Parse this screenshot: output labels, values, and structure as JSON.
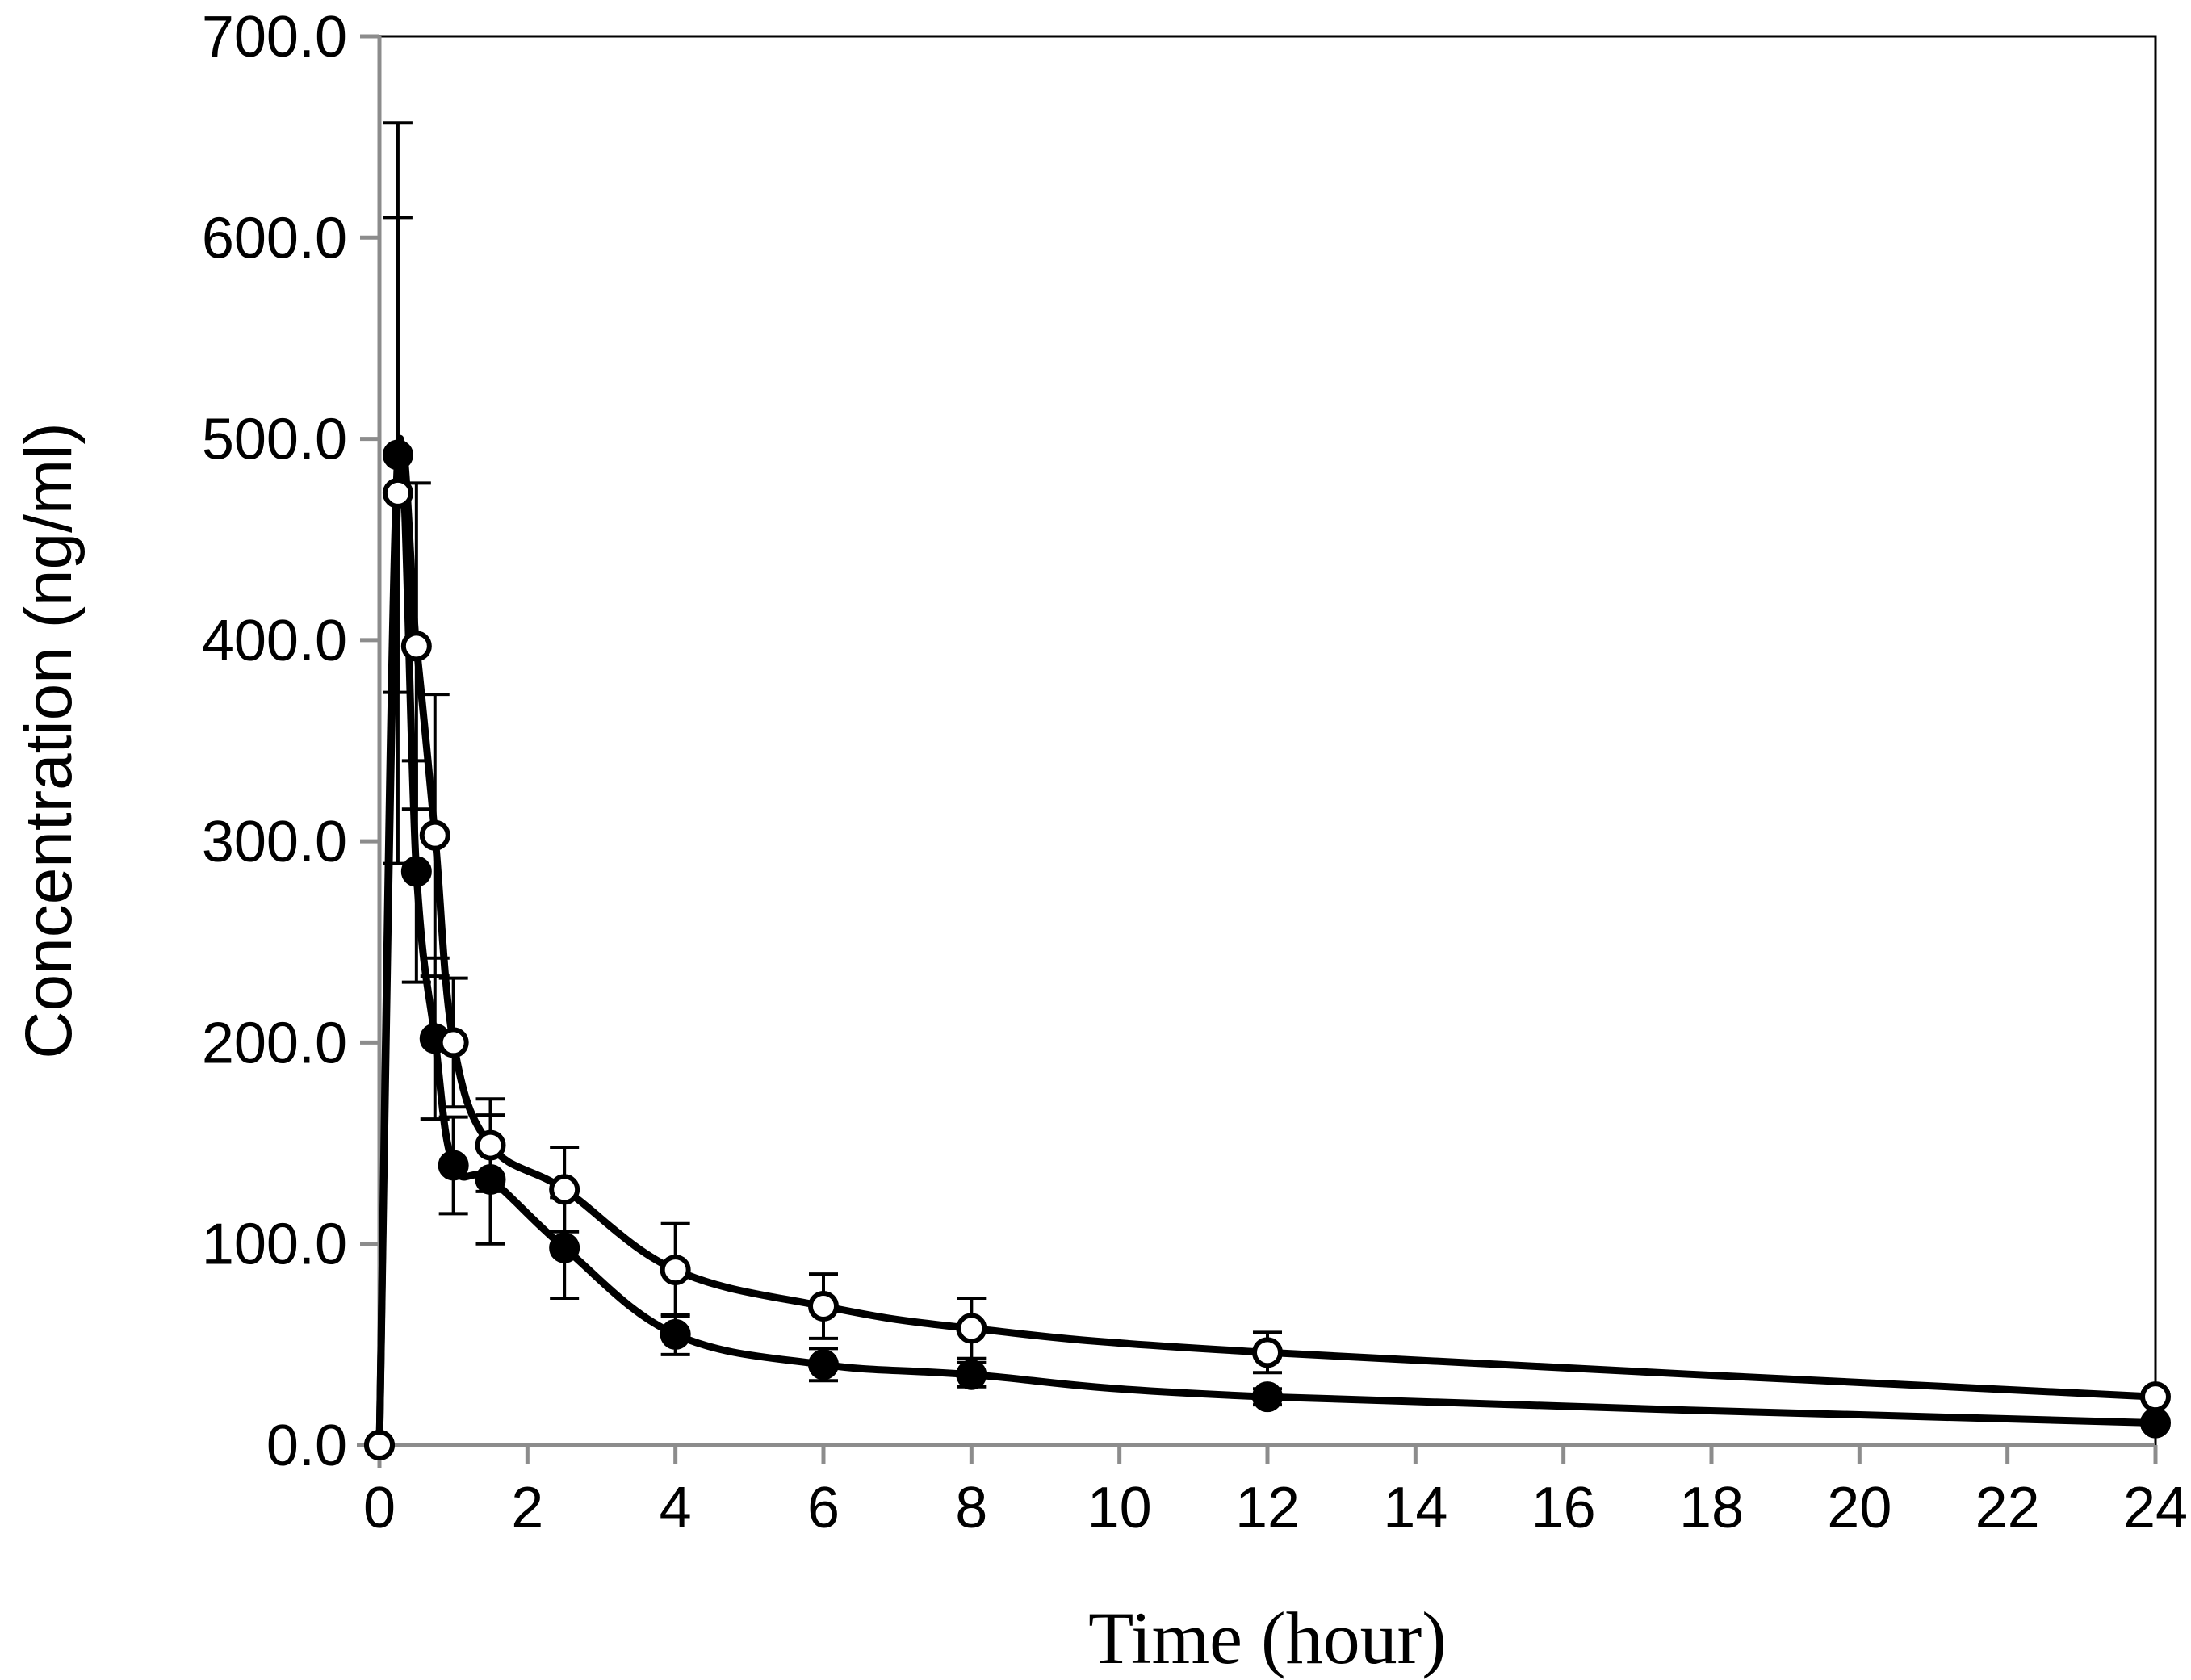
{
  "chart_data": {
    "type": "line",
    "title": "",
    "xlabel": "Time (hour)",
    "ylabel": "Concentration (ng/ml)",
    "xlim": [
      0,
      24
    ],
    "ylim": [
      0,
      700
    ],
    "x_ticks": [
      "0",
      "2",
      "4",
      "6",
      "8",
      "10",
      "12",
      "14",
      "16",
      "18",
      "20",
      "22",
      "24"
    ],
    "y_ticks": [
      "0.0",
      "100.0",
      "200.0",
      "300.0",
      "400.0",
      "500.0",
      "600.0",
      "700.0"
    ],
    "grid": false,
    "legend": "none",
    "colors": {
      "line": "#000000",
      "axis": "#8c8c8c",
      "frame": "#000000"
    },
    "series": [
      {
        "marker": "filled-circle",
        "x": [
          0,
          0.25,
          0.5,
          0.75,
          1,
          1.5,
          2.5,
          4,
          6,
          8,
          12,
          24
        ],
        "y": [
          0,
          492,
          285,
          202,
          139,
          132,
          98,
          55,
          40,
          35,
          24,
          11
        ],
        "error": [
          0,
          118,
          55,
          40,
          24,
          32,
          25,
          10,
          8,
          6,
          4,
          2
        ]
      },
      {
        "marker": "open-circle",
        "x": [
          0,
          0.25,
          0.5,
          0.75,
          1,
          1.5,
          2.5,
          4,
          6,
          8,
          12,
          24
        ],
        "y": [
          0,
          473,
          397,
          303,
          200,
          149,
          127,
          87,
          69,
          58,
          46,
          24
        ],
        "error": [
          0,
          184,
          81,
          70,
          32,
          23,
          21,
          23,
          16,
          15,
          10,
          2
        ]
      }
    ]
  }
}
